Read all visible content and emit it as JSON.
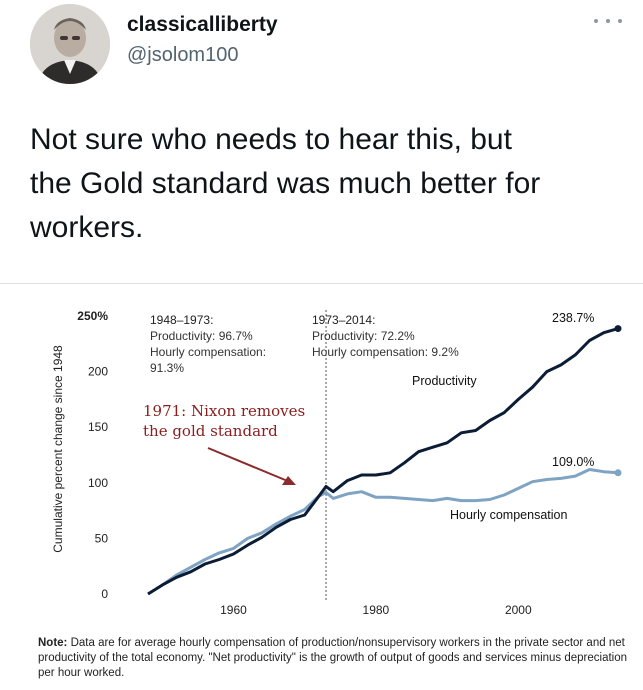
{
  "tweet": {
    "display_name": "classicalliberty",
    "handle": "@jsolom100",
    "text": "Not sure who needs to hear this, but\nthe Gold standard was much better for\nworkers.",
    "avatar_icon": "portrait-avatar-icon",
    "more_icon": "more-options-icon"
  },
  "chart_data": {
    "type": "line",
    "title": "",
    "xlabel": "",
    "ylabel": "Cumulative percent change since 1948",
    "xlim": [
      1948,
      2014
    ],
    "ylim": [
      0,
      250
    ],
    "x_ticks": [
      "1960",
      "1980",
      "2000"
    ],
    "y_ticks": [
      "250%",
      "200",
      "150",
      "100",
      "50",
      "0"
    ],
    "series": [
      {
        "name": "Productivity",
        "color": "#0b1c35",
        "x": [
          1948,
          1950,
          1952,
          1954,
          1956,
          1958,
          1960,
          1962,
          1964,
          1966,
          1968,
          1970,
          1972,
          1973,
          1974,
          1976,
          1978,
          1980,
          1982,
          1984,
          1986,
          1988,
          1990,
          1992,
          1994,
          1996,
          1998,
          2000,
          2002,
          2004,
          2006,
          2008,
          2010,
          2012,
          2014
        ],
        "values": [
          0,
          8,
          15,
          20,
          27,
          31,
          36,
          44,
          51,
          60,
          67,
          71,
          88,
          96.7,
          92,
          102,
          107,
          107,
          109,
          118,
          128,
          132,
          136,
          145,
          147,
          156,
          163,
          175,
          186,
          200,
          206,
          215,
          228,
          235,
          238.7
        ]
      },
      {
        "name": "Hourly compensation",
        "color": "#7fa3c3",
        "x": [
          1948,
          1950,
          1952,
          1954,
          1956,
          1958,
          1960,
          1962,
          1964,
          1966,
          1968,
          1970,
          1972,
          1973,
          1974,
          1976,
          1978,
          1980,
          1982,
          1984,
          1986,
          1988,
          1990,
          1992,
          1994,
          1996,
          1998,
          2000,
          2002,
          2004,
          2006,
          2008,
          2010,
          2012,
          2014
        ],
        "values": [
          0,
          8,
          17,
          24,
          31,
          37,
          41,
          50,
          55,
          63,
          70,
          76,
          88,
          91.3,
          86,
          90,
          92,
          87,
          87,
          86,
          85,
          84,
          86,
          84,
          84,
          85,
          89,
          95,
          101,
          103,
          104,
          106,
          112,
          110,
          109.0
        ]
      }
    ],
    "end_labels": {
      "productivity": "238.7%",
      "compensation": "109.0%"
    },
    "divider_year": 1973,
    "annotations": {
      "period1": {
        "range": "1948–1973:",
        "productivity": "Productivity: 96.7%",
        "compensation": "Hourly compensation:",
        "compensation_value": "91.3%"
      },
      "period2": {
        "range": "1973–2014:",
        "productivity": "Productivity: 72.2%",
        "compensation": "Hourly compensation: 9.2%"
      },
      "nixon": {
        "line1": "1971: Nixon removes",
        "line2": "the gold standard"
      }
    },
    "grid": false,
    "legend": "inline-labels"
  },
  "note": {
    "label": "Note:",
    "text": " Data are for average hourly compensation of production/nonsupervisory workers in the private sector and net productivity of the total economy. \"Net productivity\" is the growth of output of goods and services minus depreciation per hour worked."
  }
}
